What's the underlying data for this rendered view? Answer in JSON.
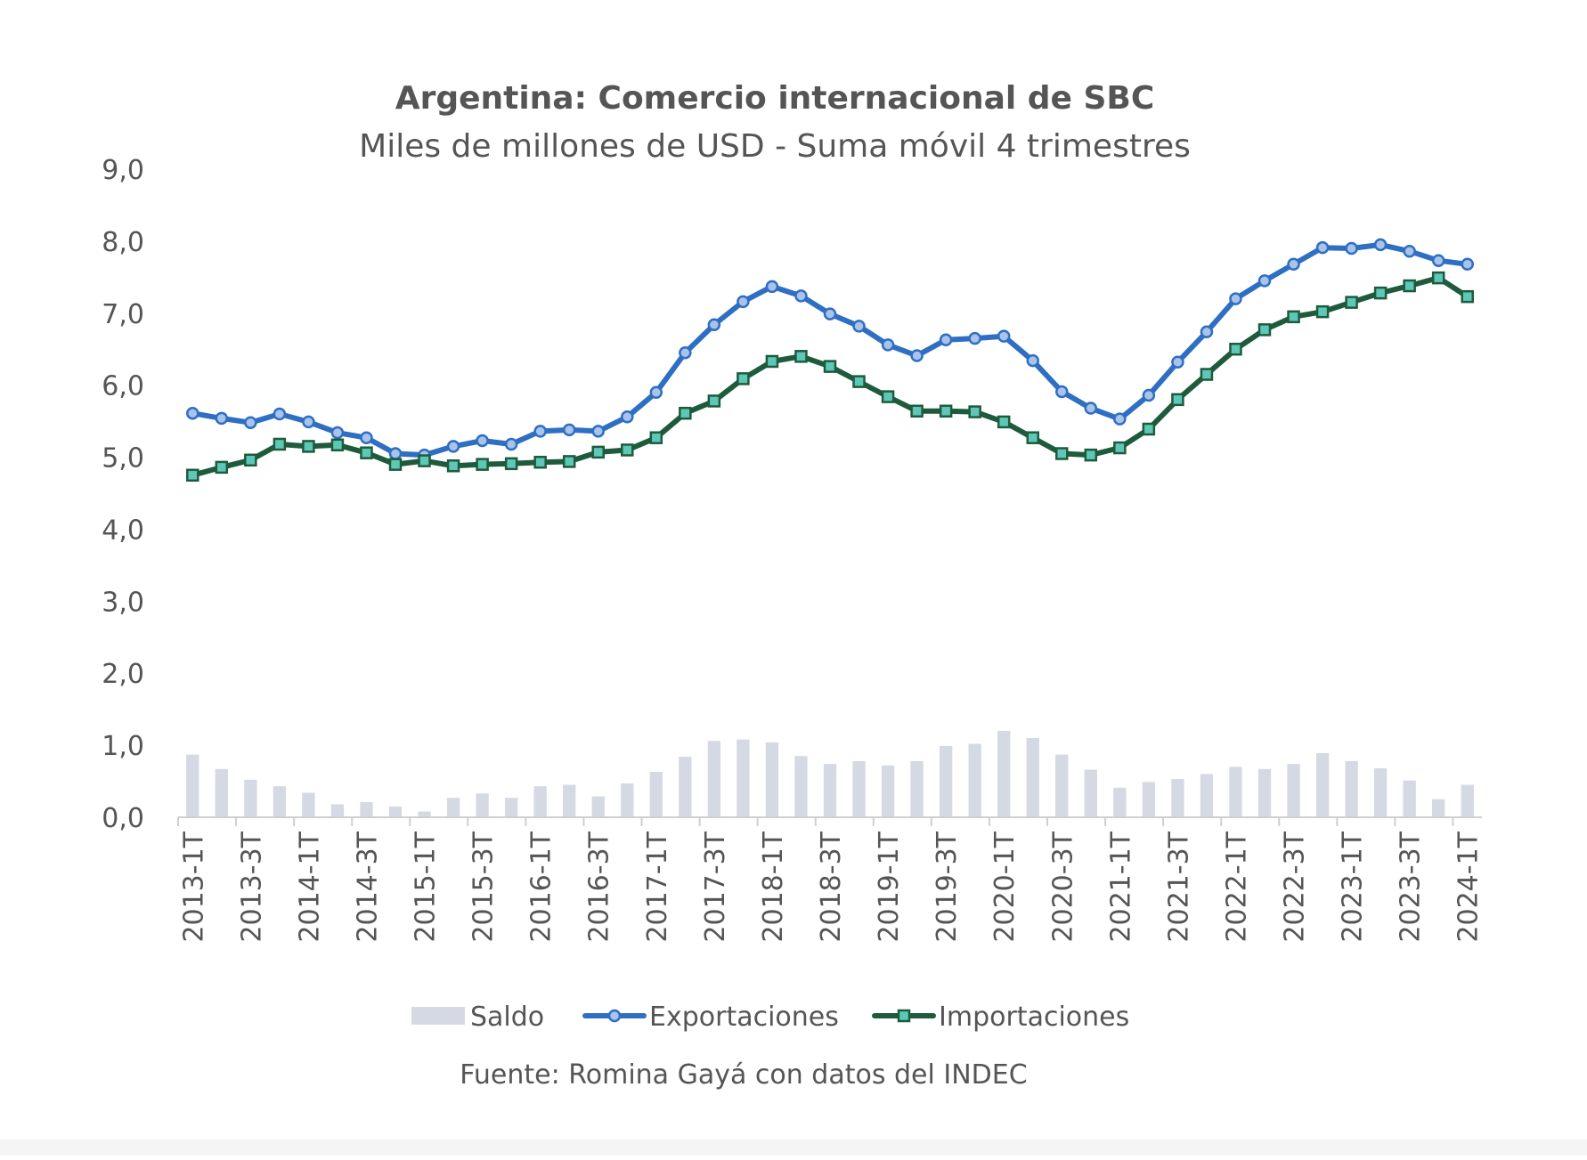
{
  "chart_data": {
    "type": "bar+line",
    "title": "Argentina: Comercio internacional de SBC",
    "subtitle": "Miles de millones de USD - Suma móvil 4 trimestres",
    "source": "Fuente: Romina Gayá con datos del INDEC",
    "ylim": [
      0,
      9
    ],
    "yticks": [
      "0,0",
      "1,0",
      "2,0",
      "3,0",
      "4,0",
      "5,0",
      "6,0",
      "7,0",
      "8,0",
      "9,0"
    ],
    "grid": false,
    "legend_position": "bottom",
    "categories": [
      "2013-1T",
      "2013-2T",
      "2013-3T",
      "2013-4T",
      "2014-1T",
      "2014-2T",
      "2014-3T",
      "2014-4T",
      "2015-1T",
      "2015-2T",
      "2015-3T",
      "2015-4T",
      "2016-1T",
      "2016-2T",
      "2016-3T",
      "2016-4T",
      "2017-1T",
      "2017-2T",
      "2017-3T",
      "2017-4T",
      "2018-1T",
      "2018-2T",
      "2018-3T",
      "2018-4T",
      "2019-1T",
      "2019-2T",
      "2019-3T",
      "2019-4T",
      "2020-1T",
      "2020-2T",
      "2020-3T",
      "2020-4T",
      "2021-1T",
      "2021-2T",
      "2021-3T",
      "2021-4T",
      "2022-1T",
      "2022-2T",
      "2022-3T",
      "2022-4T",
      "2023-1T",
      "2023-2T",
      "2023-3T",
      "2023-4T",
      "2024-1T"
    ],
    "xtick_labels": [
      "2013-1T",
      "2013-3T",
      "2014-1T",
      "2014-3T",
      "2015-1T",
      "2015-3T",
      "2016-1T",
      "2016-3T",
      "2017-1T",
      "2017-3T",
      "2018-1T",
      "2018-3T",
      "2019-1T",
      "2019-3T",
      "2020-1T",
      "2020-3T",
      "2021-1T",
      "2021-3T",
      "2022-1T",
      "2022-3T",
      "2023-1T",
      "2023-3T",
      "2024-1T"
    ],
    "series": [
      {
        "name": "Saldo",
        "type": "bar",
        "color": "#d4d9e3",
        "values": [
          0.87,
          0.67,
          0.52,
          0.43,
          0.34,
          0.18,
          0.21,
          0.15,
          0.08,
          0.27,
          0.33,
          0.27,
          0.43,
          0.45,
          0.29,
          0.47,
          0.63,
          0.84,
          1.06,
          1.08,
          1.04,
          0.85,
          0.74,
          0.78,
          0.72,
          0.78,
          0.99,
          1.02,
          1.2,
          1.1,
          0.87,
          0.66,
          0.41,
          0.49,
          0.53,
          0.6,
          0.7,
          0.67,
          0.74,
          0.89,
          0.78,
          0.68,
          0.51,
          0.25,
          0.45
        ]
      },
      {
        "name": "Exportaciones",
        "type": "line",
        "color": "#2e6fc3",
        "marker": "circle",
        "marker_fill": "#a9c3ea",
        "values": [
          5.61,
          5.54,
          5.48,
          5.6,
          5.49,
          5.34,
          5.27,
          5.05,
          5.03,
          5.15,
          5.23,
          5.18,
          5.36,
          5.38,
          5.36,
          5.56,
          5.9,
          6.45,
          6.84,
          7.16,
          7.37,
          7.24,
          6.99,
          6.82,
          6.56,
          6.41,
          6.63,
          6.65,
          6.68,
          6.34,
          5.91,
          5.68,
          5.53,
          5.86,
          6.32,
          6.74,
          7.2,
          7.45,
          7.68,
          7.91,
          7.9,
          7.95,
          7.86,
          7.73,
          7.68
        ]
      },
      {
        "name": "Importaciones",
        "type": "line",
        "color": "#1e5b3c",
        "marker": "square",
        "marker_fill": "#5ec8b8",
        "values": [
          4.75,
          4.86,
          4.96,
          5.18,
          5.15,
          5.17,
          5.06,
          4.9,
          4.95,
          4.88,
          4.9,
          4.91,
          4.93,
          4.94,
          5.07,
          5.1,
          5.27,
          5.61,
          5.78,
          6.09,
          6.33,
          6.4,
          6.26,
          6.05,
          5.84,
          5.64,
          5.64,
          5.63,
          5.49,
          5.27,
          5.05,
          5.03,
          5.13,
          5.39,
          5.8,
          6.15,
          6.5,
          6.77,
          6.95,
          7.02,
          7.15,
          7.28,
          7.38,
          7.49,
          7.23
        ]
      }
    ]
  }
}
